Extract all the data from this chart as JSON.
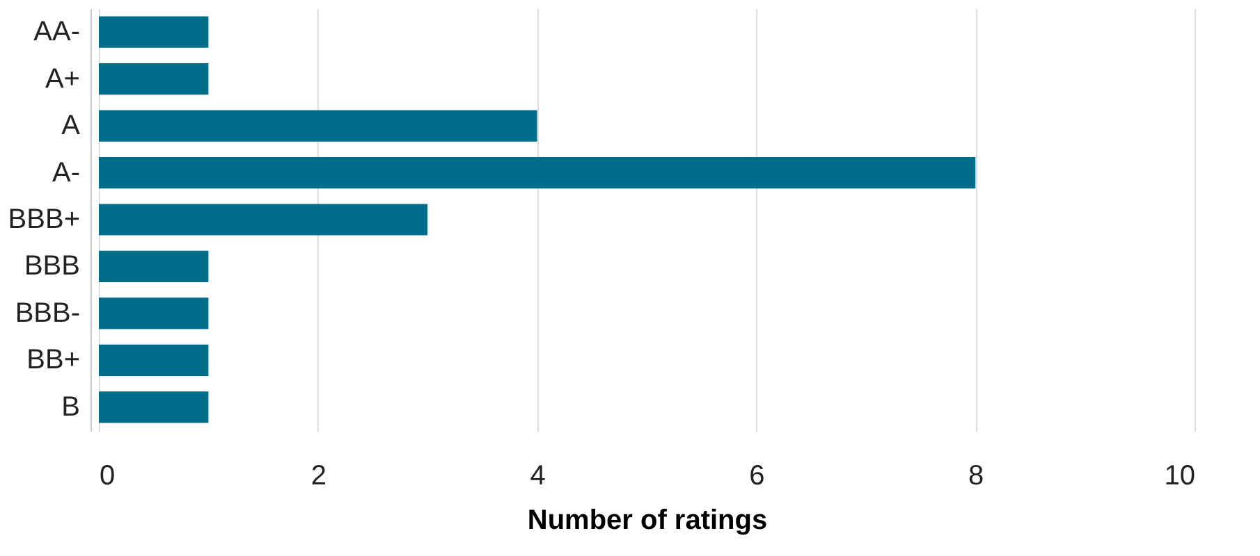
{
  "chart_data": {
    "type": "bar",
    "orientation": "horizontal",
    "xlabel": "Number of ratings",
    "categories": [
      "AA-",
      "A+",
      "A",
      "A-",
      "BBB+",
      "BBB",
      "BBB-",
      "BB+",
      "B"
    ],
    "values": [
      1,
      1,
      4,
      8,
      3,
      1,
      1,
      1,
      1
    ],
    "color": "#006e8a",
    "xlim": [
      0,
      10
    ],
    "xticks": [
      0,
      2,
      4,
      6,
      8,
      10
    ],
    "grid": "x"
  }
}
